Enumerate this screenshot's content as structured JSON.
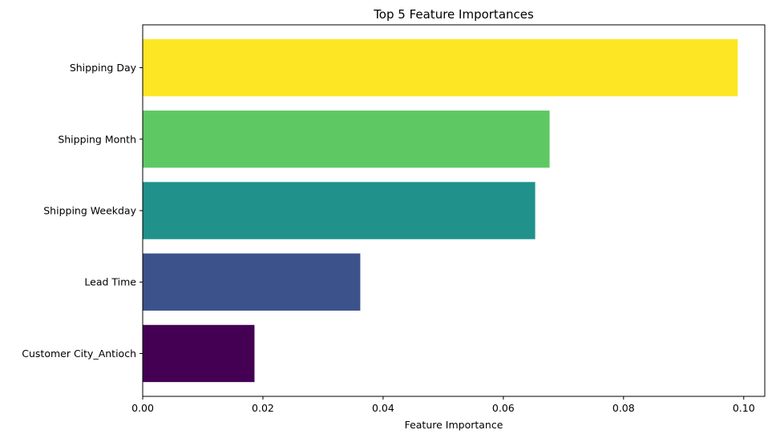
{
  "chart_data": {
    "type": "bar",
    "orientation": "horizontal",
    "title": "Top 5 Feature Importances",
    "xlabel": "Feature Importance",
    "ylabel": "",
    "categories": [
      "Shipping Day",
      "Shipping Month",
      "Shipping Weekday",
      "Lead Time",
      "Customer City_Antioch"
    ],
    "values": [
      0.099,
      0.0677,
      0.0653,
      0.0362,
      0.0186
    ],
    "colors": [
      "#fde725",
      "#5ec962",
      "#21918c",
      "#3b528b",
      "#440154"
    ],
    "xlim": [
      0,
      0.1035
    ],
    "xticks": [
      0.0,
      0.02,
      0.04,
      0.06,
      0.08,
      0.1
    ],
    "xtick_labels": [
      "0.00",
      "0.02",
      "0.04",
      "0.06",
      "0.08",
      "0.10"
    ],
    "grid": false,
    "legend": "none"
  }
}
